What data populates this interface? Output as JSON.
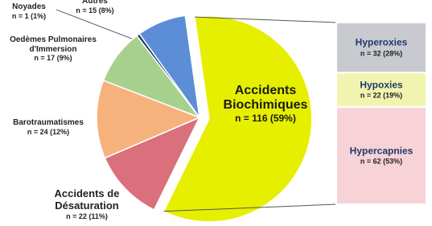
{
  "chart_data": {
    "type": "pie",
    "categories": [
      "Accidents Biochimiques",
      "Accidents de Désaturation",
      "Barotraumatismes",
      "Oedèmes Pulmonaires d'Immersion",
      "Noyades",
      "Autres"
    ],
    "values": [
      116,
      22,
      24,
      17,
      1,
      15
    ],
    "value_labels": [
      "n = 116 (59%)",
      "n = 22 (11%)",
      "n = 24 (12%)",
      "n = 17 (9%)",
      "n = 1 (1%)",
      "n = 15 (8%)"
    ],
    "colors": [
      "#e6ef00",
      "#d9707c",
      "#f6b27c",
      "#a8d08d",
      "#203864",
      "#5b8ed6"
    ],
    "breakdown": {
      "categories": [
        "Hyperoxies",
        "Hypoxies",
        "Hypercapnies"
      ],
      "values": [
        32,
        22,
        62
      ],
      "value_labels": [
        "n = 32 (28%)",
        "n = 22 (19%)",
        "n = 62 (53%)"
      ],
      "colors": [
        "#c8cacf",
        "#f1f4ae",
        "#f7d2d6"
      ]
    }
  }
}
